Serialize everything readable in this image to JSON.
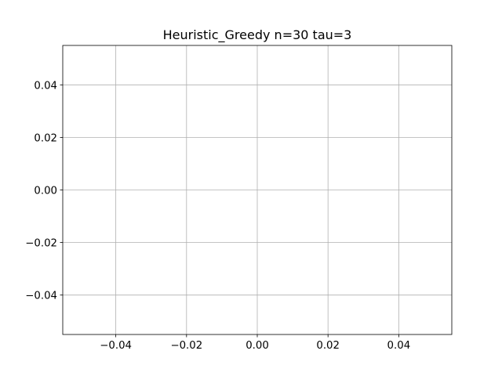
{
  "chart_data": {
    "type": "line",
    "title": "Heuristic_Greedy n=30 tau=3",
    "xlabel": "",
    "ylabel": "",
    "series": [],
    "xlim": [
      -0.055,
      0.055
    ],
    "ylim": [
      -0.055,
      0.055
    ],
    "xticks": [
      -0.04,
      -0.02,
      0.0,
      0.02,
      0.04
    ],
    "yticks": [
      -0.04,
      -0.02,
      0.0,
      0.02,
      0.04
    ],
    "xtick_labels": [
      "−0.04",
      "−0.02",
      "0.00",
      "0.02",
      "0.04"
    ],
    "ytick_labels": [
      "−0.04",
      "−0.02",
      "0.00",
      "0.02",
      "0.04"
    ],
    "grid": true,
    "legend": "none",
    "colors": {
      "grid": "#b0b0b0",
      "axes": "#000000",
      "background": "#ffffff"
    }
  }
}
